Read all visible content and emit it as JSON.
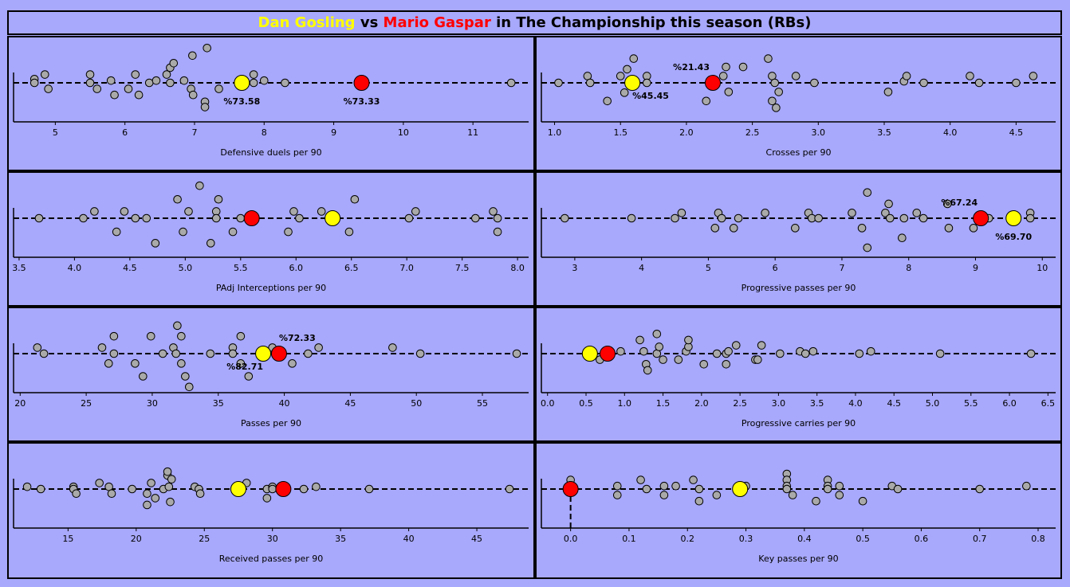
{
  "header": {
    "player1": "Dan Gosling",
    "vs": " vs ",
    "player2": "Mario Gaspar",
    "rest": " in The Championship this season (RBs)"
  },
  "colors": {
    "background": "#a8a8fc",
    "player1": "#ffff00",
    "player2": "#ff0000",
    "others": "#a9a9a9"
  },
  "chart_data": [
    {
      "type": "scatter",
      "xlabel": "Defensive duels per 90",
      "xlim": [
        4.4,
        11.8
      ],
      "ticks": [
        5,
        6,
        7,
        8,
        9,
        10,
        11
      ],
      "tick_labels": [
        "5",
        "6",
        "7",
        "8",
        "9",
        "10",
        "11"
      ],
      "others": [
        [
          4.7,
          0.5
        ],
        [
          4.7,
          0
        ],
        [
          4.85,
          1.1
        ],
        [
          4.9,
          -0.8
        ],
        [
          5.5,
          1.1
        ],
        [
          5.5,
          0
        ],
        [
          5.6,
          -0.8
        ],
        [
          5.8,
          0.3
        ],
        [
          5.85,
          -1.6
        ],
        [
          6.05,
          -0.8
        ],
        [
          6.15,
          1.1
        ],
        [
          6.2,
          -1.6
        ],
        [
          6.35,
          0
        ],
        [
          6.45,
          0.3
        ],
        [
          6.6,
          1.1
        ],
        [
          6.65,
          0
        ],
        [
          6.65,
          2
        ],
        [
          6.7,
          2.6
        ],
        [
          6.85,
          0.3
        ],
        [
          6.95,
          -0.8
        ],
        [
          6.97,
          3.6
        ],
        [
          6.98,
          -1.6
        ],
        [
          7.15,
          -2.5
        ],
        [
          7.15,
          -3.2
        ],
        [
          7.18,
          4.6
        ],
        [
          7.35,
          -0.8
        ],
        [
          7.85,
          1.1
        ],
        [
          7.85,
          0
        ],
        [
          8,
          0.3
        ],
        [
          8.3,
          0
        ],
        [
          11.55,
          0
        ]
      ],
      "player1": {
        "x": 7.68,
        "label": "%73.58",
        "label_pos": "below"
      },
      "player2": {
        "x": 9.4,
        "label": "%73.33",
        "label_pos": "below"
      }
    },
    {
      "type": "scatter",
      "xlabel": "Crosses per 90",
      "xlim": [
        0.9,
        4.8
      ],
      "ticks": [
        1.0,
        1.5,
        2.0,
        2.5,
        3.0,
        3.5,
        4.0,
        4.5
      ],
      "tick_labels": [
        "1.0",
        "1.5",
        "2.0",
        "2.5",
        "3.0",
        "3.5",
        "4.0",
        "4.5"
      ],
      "others": [
        [
          1.03,
          0
        ],
        [
          1.25,
          0.9
        ],
        [
          1.27,
          0
        ],
        [
          1.4,
          -2.4
        ],
        [
          1.5,
          0.9
        ],
        [
          1.53,
          -1.3
        ],
        [
          1.55,
          1.8
        ],
        [
          1.6,
          3.2
        ],
        [
          1.7,
          0.9
        ],
        [
          1.7,
          0
        ],
        [
          2.15,
          -2.4
        ],
        [
          2.2,
          0.2
        ],
        [
          2.28,
          0.9
        ],
        [
          2.3,
          2.1
        ],
        [
          2.32,
          -1.2
        ],
        [
          2.43,
          2.1
        ],
        [
          2.62,
          3.2
        ],
        [
          2.65,
          0.9
        ],
        [
          2.65,
          -2.4
        ],
        [
          2.67,
          0
        ],
        [
          2.68,
          -3.3
        ],
        [
          2.7,
          -1.2
        ],
        [
          2.83,
          0.9
        ],
        [
          2.97,
          0
        ],
        [
          3.53,
          -1.2
        ],
        [
          3.65,
          0.2
        ],
        [
          3.67,
          0.9
        ],
        [
          3.8,
          0
        ],
        [
          4.15,
          0.9
        ],
        [
          4.22,
          0
        ],
        [
          4.5,
          0
        ],
        [
          4.63,
          0.9
        ]
      ],
      "player1": {
        "x": 1.59,
        "label": "%45.45",
        "label_pos": "below-right"
      },
      "player2": {
        "x": 2.2,
        "label": "%21.43",
        "label_pos": "above-left"
      }
    },
    {
      "type": "scatter",
      "xlabel": "PAdj Interceptions per 90",
      "xlim": [
        3.45,
        8.1
      ],
      "ticks": [
        3.5,
        4.0,
        4.5,
        5.0,
        5.5,
        6.0,
        6.5,
        7.0,
        7.5,
        8.0
      ],
      "tick_labels": [
        "3.5",
        "4.0",
        "4.5",
        "5.0",
        "5.5",
        "6.0",
        "6.5",
        "7.0",
        "7.5",
        "8.0"
      ],
      "others": [
        [
          3.68,
          0
        ],
        [
          4.08,
          0
        ],
        [
          4.18,
          0.9
        ],
        [
          4.38,
          -1.8
        ],
        [
          4.45,
          0.9
        ],
        [
          4.55,
          0
        ],
        [
          4.65,
          0
        ],
        [
          4.73,
          -3.3
        ],
        [
          4.93,
          2.5
        ],
        [
          4.98,
          -1.8
        ],
        [
          5.03,
          0.9
        ],
        [
          5.13,
          4.3
        ],
        [
          5.23,
          -3.3
        ],
        [
          5.28,
          0.9
        ],
        [
          5.28,
          0
        ],
        [
          5.3,
          2.5
        ],
        [
          5.43,
          -1.8
        ],
        [
          5.5,
          0
        ],
        [
          5.93,
          -1.8
        ],
        [
          5.98,
          0.9
        ],
        [
          6.03,
          0
        ],
        [
          6.23,
          0.9
        ],
        [
          6.48,
          -1.8
        ],
        [
          6.53,
          2.5
        ],
        [
          7.02,
          0
        ],
        [
          7.08,
          0.9
        ],
        [
          7.62,
          0
        ],
        [
          7.78,
          0.9
        ],
        [
          7.82,
          0
        ],
        [
          7.82,
          -1.8
        ]
      ],
      "player1": {
        "x": 6.33,
        "label": "",
        "label_pos": "none"
      },
      "player2": {
        "x": 5.6,
        "label": "",
        "label_pos": "none"
      }
    },
    {
      "type": "scatter",
      "xlabel": "Progressive passes per 90",
      "xlim": [
        2.5,
        10.2
      ],
      "ticks": [
        3,
        4,
        5,
        6,
        7,
        8,
        9,
        10
      ],
      "tick_labels": [
        "3",
        "4",
        "5",
        "6",
        "7",
        "8",
        "9",
        "10"
      ],
      "others": [
        [
          2.85,
          0
        ],
        [
          3.85,
          0
        ],
        [
          4.5,
          0
        ],
        [
          4.6,
          0.7
        ],
        [
          5.1,
          -1.3
        ],
        [
          5.15,
          0.7
        ],
        [
          5.2,
          0
        ],
        [
          5.38,
          -1.3
        ],
        [
          5.45,
          0
        ],
        [
          5.85,
          0.7
        ],
        [
          6.3,
          -1.3
        ],
        [
          6.5,
          0.7
        ],
        [
          6.55,
          0
        ],
        [
          6.65,
          0
        ],
        [
          7.15,
          0.7
        ],
        [
          7.3,
          -1.3
        ],
        [
          7.38,
          3.4
        ],
        [
          7.38,
          -3.9
        ],
        [
          7.65,
          0.7
        ],
        [
          7.7,
          1.9
        ],
        [
          7.72,
          0
        ],
        [
          7.9,
          -2.6
        ],
        [
          7.93,
          0
        ],
        [
          8.12,
          0.7
        ],
        [
          8.22,
          0
        ],
        [
          8.58,
          1.9
        ],
        [
          8.6,
          -1.3
        ],
        [
          8.97,
          -1.3
        ],
        [
          9.2,
          0
        ],
        [
          9.82,
          0.7
        ],
        [
          9.82,
          0
        ]
      ],
      "player1": {
        "x": 9.57,
        "label": "%69.70",
        "label_pos": "below"
      },
      "player2": {
        "x": 9.08,
        "label": "%67.24",
        "label_pos": "above-left"
      }
    },
    {
      "type": "scatter",
      "xlabel": "Passes per 90",
      "xlim": [
        19.5,
        58.5
      ],
      "ticks": [
        20,
        25,
        30,
        35,
        40,
        45,
        50,
        55
      ],
      "tick_labels": [
        "20",
        "25",
        "30",
        "35",
        "40",
        "45",
        "50",
        "55"
      ],
      "others": [
        [
          21.3,
          0.8
        ],
        [
          21.8,
          0
        ],
        [
          26.2,
          0.8
        ],
        [
          26.7,
          -1.3
        ],
        [
          27.1,
          2.3
        ],
        [
          27.1,
          0
        ],
        [
          28.7,
          -1.3
        ],
        [
          29.3,
          -3
        ],
        [
          29.9,
          2.3
        ],
        [
          30.8,
          0
        ],
        [
          31.6,
          0.8
        ],
        [
          31.8,
          0
        ],
        [
          31.9,
          3.7
        ],
        [
          32.2,
          2.3
        ],
        [
          32.2,
          -1.3
        ],
        [
          32.5,
          -3
        ],
        [
          32.8,
          -4.4
        ],
        [
          34.4,
          0
        ],
        [
          36.1,
          0.8
        ],
        [
          36.1,
          0
        ],
        [
          36.7,
          2.3
        ],
        [
          36.7,
          -1.3
        ],
        [
          37.3,
          -3
        ],
        [
          39.1,
          0.8
        ],
        [
          40.6,
          -1.3
        ],
        [
          41.8,
          0
        ],
        [
          42.6,
          0.8
        ],
        [
          48.2,
          0.8
        ],
        [
          50.3,
          0
        ],
        [
          57.6,
          0
        ]
      ],
      "player1": {
        "x": 38.4,
        "label": "%82.71",
        "label_pos": "below-left"
      },
      "player2": {
        "x": 39.6,
        "label": "%72.33",
        "label_pos": "above-right"
      }
    },
    {
      "type": "scatter",
      "xlabel": "Progressive carries per 90",
      "xlim": [
        -0.08,
        6.6
      ],
      "ticks": [
        0.0,
        0.5,
        1.0,
        1.5,
        2.0,
        2.5,
        3.0,
        3.5,
        4.0,
        4.5,
        5.0,
        5.5,
        6.0,
        6.5
      ],
      "tick_labels": [
        "0.0",
        "0.5",
        "1.0",
        "1.5",
        "2.0",
        "2.5",
        "3.0",
        "3.5",
        "4.0",
        "4.5",
        "5.0",
        "5.5",
        "6.0",
        "6.5"
      ],
      "others": [
        [
          0.68,
          -0.8
        ],
        [
          0.95,
          0.3
        ],
        [
          1.2,
          1.8
        ],
        [
          1.25,
          0.3
        ],
        [
          1.28,
          -1.4
        ],
        [
          1.3,
          -2.2
        ],
        [
          1.42,
          2.6
        ],
        [
          1.42,
          0
        ],
        [
          1.45,
          0.9
        ],
        [
          1.5,
          -0.8
        ],
        [
          1.7,
          -0.8
        ],
        [
          1.8,
          0.3
        ],
        [
          1.83,
          0.9
        ],
        [
          1.83,
          1.8
        ],
        [
          2.03,
          -1.4
        ],
        [
          2.2,
          0
        ],
        [
          2.32,
          0
        ],
        [
          2.32,
          -1.4
        ],
        [
          2.35,
          0.3
        ],
        [
          2.45,
          1.1
        ],
        [
          2.7,
          -0.8
        ],
        [
          2.73,
          -0.8
        ],
        [
          2.78,
          1.1
        ],
        [
          3.02,
          0
        ],
        [
          3.28,
          0.3
        ],
        [
          3.35,
          0
        ],
        [
          3.45,
          0.3
        ],
        [
          4.05,
          0
        ],
        [
          4.2,
          0.3
        ],
        [
          5.1,
          0
        ],
        [
          6.28,
          0
        ]
      ],
      "player1": {
        "x": 0.55,
        "label": "",
        "label_pos": "none"
      },
      "player2": {
        "x": 0.78,
        "label": "",
        "label_pos": "none"
      }
    },
    {
      "type": "scatter",
      "xlabel": "Received passes per 90",
      "xlim": [
        11,
        48.8
      ],
      "ticks": [
        15,
        20,
        25,
        30,
        35,
        40,
        45
      ],
      "tick_labels": [
        "15",
        "20",
        "25",
        "30",
        "35",
        "40",
        "45"
      ],
      "others": [
        [
          12,
          0.3
        ],
        [
          13,
          0
        ],
        [
          15.4,
          0.3
        ],
        [
          15.4,
          0
        ],
        [
          15.6,
          -0.6
        ],
        [
          17.3,
          0.8
        ],
        [
          18,
          0.3
        ],
        [
          18.2,
          -0.6
        ],
        [
          19.7,
          0
        ],
        [
          20.8,
          -0.6
        ],
        [
          20.8,
          -2.1
        ],
        [
          21.1,
          0.8
        ],
        [
          21.4,
          -1.2
        ],
        [
          22,
          0
        ],
        [
          22.3,
          1.8
        ],
        [
          22.3,
          2.3
        ],
        [
          22.4,
          0.3
        ],
        [
          22.5,
          -1.7
        ],
        [
          22.6,
          1.3
        ],
        [
          24.3,
          0.3
        ],
        [
          24.6,
          0
        ],
        [
          24.7,
          -0.6
        ],
        [
          28.1,
          0.8
        ],
        [
          29.6,
          0
        ],
        [
          29.6,
          -1.2
        ],
        [
          30,
          0.3
        ],
        [
          30,
          0
        ],
        [
          32.3,
          0
        ],
        [
          33.2,
          0.3
        ],
        [
          37.1,
          0
        ],
        [
          47.4,
          0
        ]
      ],
      "player1": {
        "x": 27.5,
        "label": "",
        "label_pos": "none"
      },
      "player2": {
        "x": 30.8,
        "label": "",
        "label_pos": "none"
      }
    },
    {
      "type": "scatter",
      "xlabel": "Key passes per 90",
      "xlim": [
        -0.05,
        0.83
      ],
      "ticks": [
        0.0,
        0.1,
        0.2,
        0.3,
        0.4,
        0.5,
        0.6,
        0.7,
        0.8
      ],
      "tick_labels": [
        "0.0",
        "0.1",
        "0.2",
        "0.3",
        "0.4",
        "0.5",
        "0.6",
        "0.7",
        "0.8"
      ],
      "others": [
        [
          0,
          1.2
        ],
        [
          0.08,
          0.4
        ],
        [
          0.08,
          -0.8
        ],
        [
          0.12,
          1.2
        ],
        [
          0.13,
          0
        ],
        [
          0.16,
          0.4
        ],
        [
          0.16,
          -0.8
        ],
        [
          0.18,
          0.4
        ],
        [
          0.21,
          1.2
        ],
        [
          0.22,
          0
        ],
        [
          0.22,
          -1.6
        ],
        [
          0.25,
          -0.8
        ],
        [
          0.3,
          0.4
        ],
        [
          0.37,
          2.0
        ],
        [
          0.37,
          1.2
        ],
        [
          0.37,
          0.4
        ],
        [
          0.37,
          0
        ],
        [
          0.38,
          -0.8
        ],
        [
          0.42,
          -1.6
        ],
        [
          0.44,
          1.2
        ],
        [
          0.44,
          0.4
        ],
        [
          0.44,
          0
        ],
        [
          0.46,
          0.4
        ],
        [
          0.46,
          -0.8
        ],
        [
          0.5,
          -1.6
        ],
        [
          0.55,
          0.4
        ],
        [
          0.56,
          0
        ],
        [
          0.7,
          0
        ],
        [
          0.78,
          0.4
        ]
      ],
      "player1": {
        "x": 0.29,
        "label": "",
        "label_pos": "none"
      },
      "player2": {
        "x": 0.0,
        "label": "",
        "label_pos": "none"
      },
      "vertical_dashed_at": 0.0
    }
  ]
}
